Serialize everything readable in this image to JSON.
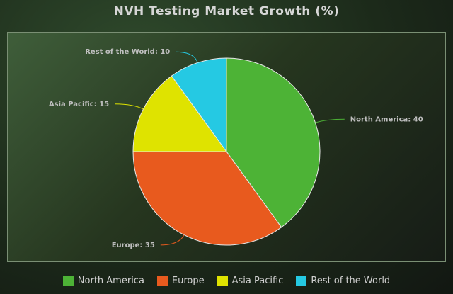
{
  "chart_data": {
    "type": "pie",
    "title": "NVH Testing Market Growth (%)",
    "categories": [
      "North America",
      "Europe",
      "Asia Pacific",
      "Rest of the World"
    ],
    "values": [
      40,
      35,
      15,
      10
    ],
    "colors": [
      "#4db336",
      "#e85a1e",
      "#dfe300",
      "#25c9e3"
    ],
    "legend_position": "bottom",
    "data_labels": [
      "North America: 40",
      "Europe: 35",
      "Asia Pacific: 15",
      "Rest of the World: 10"
    ]
  }
}
